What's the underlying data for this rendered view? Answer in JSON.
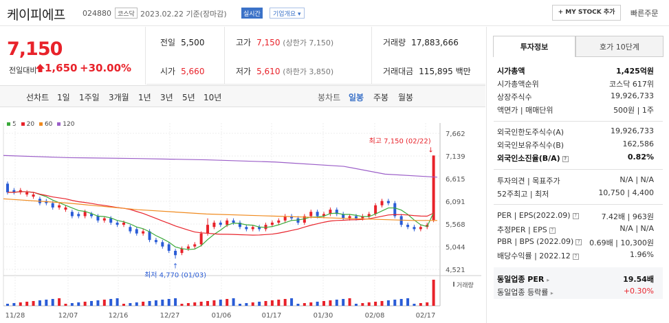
{
  "header": {
    "name": "케이피에프",
    "code": "024880",
    "market": "코스닥",
    "date": "2023.02.22 기준(장마감)",
    "live": "실시간",
    "corp_info": "기업개요",
    "mystock": "+ MY STOCK 추가",
    "quick": "빠른주문"
  },
  "price": {
    "current": "7,150",
    "change_label": "전일대비",
    "change": "1,650",
    "pct": "+30.00%"
  },
  "summary": {
    "prev_label": "전일",
    "prev": "5,500",
    "high_label": "고가",
    "high": "7,150",
    "upper_limit": "(상한가 7,150)",
    "vol_label": "거래량",
    "vol": "17,883,666",
    "open_label": "시가",
    "open": "5,660",
    "low_label": "저가",
    "low": "5,610",
    "lower_limit": "(하한가 3,850)",
    "amt_label": "거래대금",
    "amt": "115,895 백만"
  },
  "tabs": {
    "line": "선차트",
    "d1": "1일",
    "w1": "1주일",
    "m3": "3개월",
    "y1": "1년",
    "y3": "3년",
    "y5": "5년",
    "y10": "10년",
    "candle": "봉차트",
    "daily": "일봉",
    "weekly": "주봉",
    "monthly": "월봉"
  },
  "legend": [
    "5",
    "20",
    "60",
    "120"
  ],
  "chart_data": {
    "type": "candlestick",
    "y_ticks": [
      "7,662",
      "7,139",
      "6,615",
      "6,091",
      "5,568",
      "5,044",
      "4,521"
    ],
    "x_ticks": [
      "11/28",
      "12/07",
      "12/16",
      "12/27",
      "01/06",
      "01/17",
      "01/30",
      "02/08",
      "02/17"
    ],
    "ylim": [
      4521,
      7662
    ],
    "high_note": "최고 7,150 (02/22)",
    "low_note": "최저 4,770 (01/03)",
    "volume_label": "거래량",
    "ma_colors": {
      "ma5": "#3aa93a",
      "ma20": "#e8222a",
      "ma60": "#f08a1e",
      "ma120": "#9b5ec8"
    }
  },
  "info": {
    "tab_invest": "투자정보",
    "tab_hoga": "호가 10단계",
    "mcap_label": "시가총액",
    "mcap": "1,425억원",
    "rank_label": "시가총액순위",
    "rank": "코스닥 617위",
    "shares_label": "상장주식수",
    "shares": "19,926,733",
    "par_label": "액면가 | 매매단위",
    "par": "500원 | 1주",
    "flimit_label": "외국인한도주식수(A)",
    "flimit": "19,926,733",
    "fhold_label": "외국인보유주식수(B)",
    "fhold": "162,586",
    "fratio_label": "외국인소진율(B/A)",
    "fratio": "0.82%",
    "opinion_label": "투자의견 | 목표주가",
    "opinion": "N/A | N/A",
    "w52_label": "52주최고 | 최저",
    "w52": "10,750 | 4,400",
    "per_label": "PER | EPS(2022.09)",
    "per": "7.42배 | 963원",
    "eper_label": "추정PER | EPS",
    "eper": "N/A | N/A",
    "pbr_label": "PBR | BPS (2022.09)",
    "pbr": "0.69배 | 10,300원",
    "div_label": "배당수익률 | 2022.12",
    "div": "1.96%",
    "sector_per_label": "동일업종 PER",
    "sector_per": "19.54배",
    "sector_chg_label": "동일업종 등락률",
    "sector_chg": "+0.30%"
  }
}
